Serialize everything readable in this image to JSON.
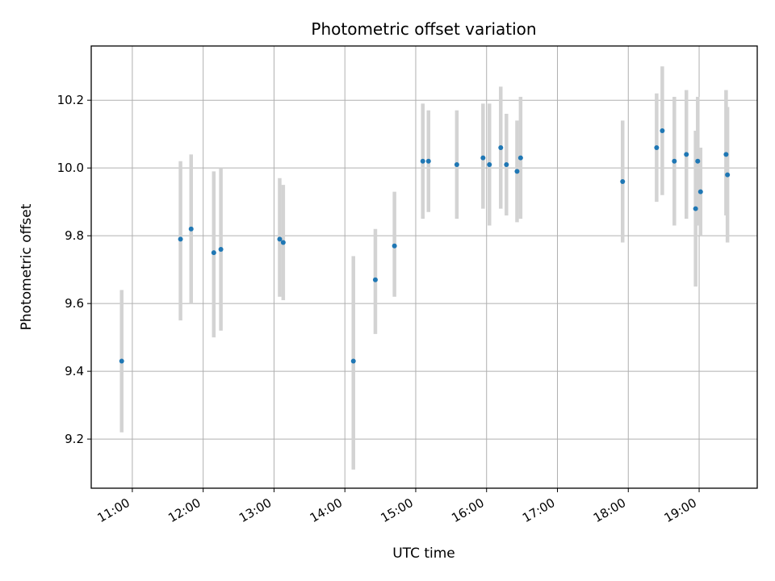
{
  "chart_data": {
    "type": "scatter",
    "title": "Photometric offset variation",
    "xlabel": "UTC time",
    "ylabel": "Photometric offset",
    "x_unit": "hours UTC",
    "xlim": [
      10.42,
      19.82
    ],
    "ylim": [
      9.055,
      10.36
    ],
    "x_ticks": [
      11,
      12,
      13,
      14,
      15,
      16,
      17,
      18,
      19
    ],
    "x_tick_labels": [
      "11:00",
      "12:00",
      "13:00",
      "14:00",
      "15:00",
      "16:00",
      "17:00",
      "18:00",
      "19:00"
    ],
    "y_ticks": [
      9.2,
      9.4,
      9.6,
      9.8,
      10.0,
      10.2
    ],
    "y_tick_labels": [
      "9.2",
      "9.4",
      "9.6",
      "9.8",
      "10.0",
      "10.2"
    ],
    "grid": true,
    "series_color": "#1f77b4",
    "errorbar_color": "#d3d3d3",
    "points": [
      {
        "x": 10.85,
        "y": 9.43,
        "lo": 9.22,
        "hi": 9.64
      },
      {
        "x": 11.68,
        "y": 9.79,
        "lo": 9.55,
        "hi": 10.02
      },
      {
        "x": 11.83,
        "y": 9.82,
        "lo": 9.6,
        "hi": 10.04
      },
      {
        "x": 12.15,
        "y": 9.75,
        "lo": 9.5,
        "hi": 9.99
      },
      {
        "x": 12.25,
        "y": 9.76,
        "lo": 9.52,
        "hi": 10.0
      },
      {
        "x": 13.08,
        "y": 9.79,
        "lo": 9.62,
        "hi": 9.97
      },
      {
        "x": 13.13,
        "y": 9.78,
        "lo": 9.61,
        "hi": 9.95
      },
      {
        "x": 14.12,
        "y": 9.43,
        "lo": 9.11,
        "hi": 9.74
      },
      {
        "x": 14.43,
        "y": 9.67,
        "lo": 9.51,
        "hi": 9.82
      },
      {
        "x": 14.7,
        "y": 9.77,
        "lo": 9.62,
        "hi": 9.93
      },
      {
        "x": 15.1,
        "y": 10.02,
        "lo": 9.85,
        "hi": 10.19
      },
      {
        "x": 15.18,
        "y": 10.02,
        "lo": 9.87,
        "hi": 10.17
      },
      {
        "x": 15.58,
        "y": 10.01,
        "lo": 9.85,
        "hi": 10.17
      },
      {
        "x": 15.95,
        "y": 10.03,
        "lo": 9.88,
        "hi": 10.19
      },
      {
        "x": 16.04,
        "y": 10.01,
        "lo": 9.83,
        "hi": 10.19
      },
      {
        "x": 16.2,
        "y": 10.06,
        "lo": 9.88,
        "hi": 10.24
      },
      {
        "x": 16.28,
        "y": 10.01,
        "lo": 9.86,
        "hi": 10.16
      },
      {
        "x": 16.43,
        "y": 9.99,
        "lo": 9.84,
        "hi": 10.14
      },
      {
        "x": 16.48,
        "y": 10.03,
        "lo": 9.85,
        "hi": 10.21
      },
      {
        "x": 17.92,
        "y": 9.96,
        "lo": 9.78,
        "hi": 10.14
      },
      {
        "x": 18.4,
        "y": 10.06,
        "lo": 9.9,
        "hi": 10.22
      },
      {
        "x": 18.48,
        "y": 10.11,
        "lo": 9.92,
        "hi": 10.3
      },
      {
        "x": 18.65,
        "y": 10.02,
        "lo": 9.83,
        "hi": 10.21
      },
      {
        "x": 18.82,
        "y": 10.04,
        "lo": 9.85,
        "hi": 10.23
      },
      {
        "x": 18.95,
        "y": 9.88,
        "lo": 9.65,
        "hi": 10.11
      },
      {
        "x": 18.98,
        "y": 10.02,
        "lo": 9.83,
        "hi": 10.21
      },
      {
        "x": 19.02,
        "y": 9.93,
        "lo": 9.8,
        "hi": 10.06
      },
      {
        "x": 19.38,
        "y": 10.04,
        "lo": 9.86,
        "hi": 10.23
      },
      {
        "x": 19.4,
        "y": 9.98,
        "lo": 9.78,
        "hi": 10.18
      }
    ]
  }
}
